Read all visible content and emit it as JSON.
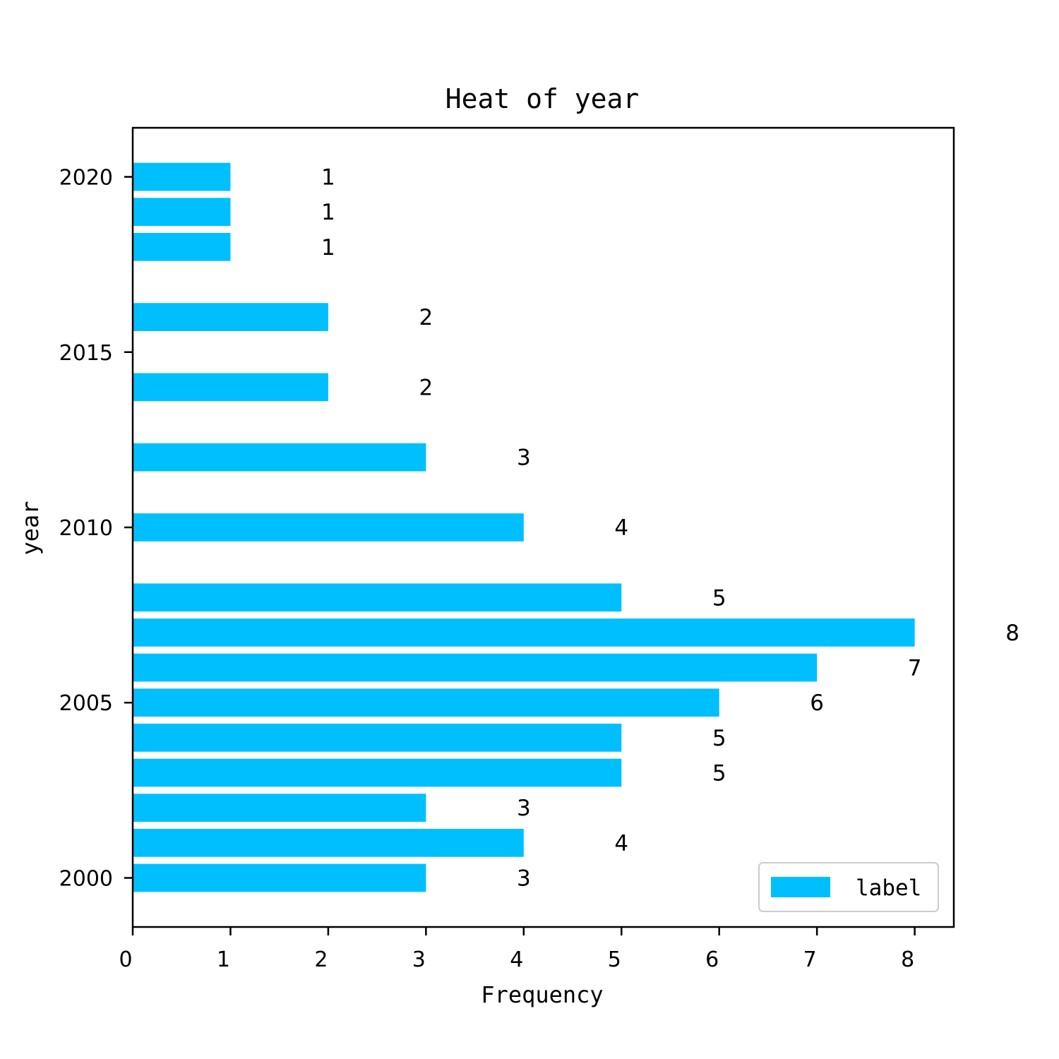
{
  "chart_data": {
    "type": "bar",
    "orientation": "horizontal",
    "title": "Heat of year",
    "xlabel": "Frequency",
    "ylabel": "year",
    "xlim": [
      0,
      8.4
    ],
    "ylim": [
      1998.6,
      2021.4
    ],
    "x_ticks": [
      0,
      1,
      2,
      3,
      4,
      5,
      6,
      7,
      8
    ],
    "y_ticks": [
      2000,
      2005,
      2010,
      2015,
      2020
    ],
    "series": [
      {
        "name": "label",
        "color": "#00BFFF",
        "points": [
          {
            "year": 2000,
            "value": 3
          },
          {
            "year": 2001,
            "value": 4
          },
          {
            "year": 2002,
            "value": 3
          },
          {
            "year": 2003,
            "value": 5
          },
          {
            "year": 2004,
            "value": 5
          },
          {
            "year": 2005,
            "value": 6
          },
          {
            "year": 2006,
            "value": 7
          },
          {
            "year": 2007,
            "value": 8
          },
          {
            "year": 2008,
            "value": 5
          },
          {
            "year": 2010,
            "value": 4
          },
          {
            "year": 2012,
            "value": 3
          },
          {
            "year": 2014,
            "value": 2
          },
          {
            "year": 2016,
            "value": 2
          },
          {
            "year": 2018,
            "value": 1
          },
          {
            "year": 2019,
            "value": 1
          },
          {
            "year": 2020,
            "value": 1
          }
        ]
      }
    ],
    "grid": false,
    "legend": {
      "position": "bottom-right",
      "entries": [
        "label"
      ]
    }
  }
}
